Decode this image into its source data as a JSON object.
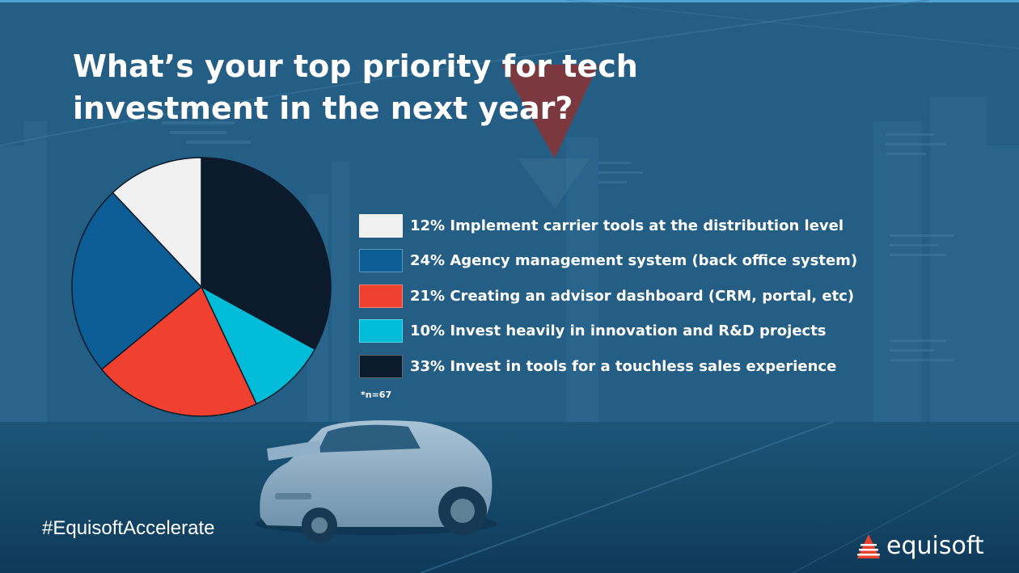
{
  "title_lines": [
    "What’s your top priority for tech",
    "investment in the next year?"
  ],
  "note": "*n=67",
  "hashtag": "#EquisoftAccelerate",
  "brand": {
    "name": "equisoft",
    "accent": "#e8432e"
  },
  "chart_data": {
    "type": "pie",
    "title": "What’s your top priority for tech investment in the next year?",
    "legend_position": "right",
    "slices": [
      {
        "label": "12% Implement carrier tools at the distribution level",
        "value": 12,
        "color": "#f1f1f1"
      },
      {
        "label": "24% Agency management system (back office system)",
        "value": 24,
        "color": "#0c5d96"
      },
      {
        "label": "21% Creating an advisor dashboard (CRM, portal, etc)",
        "value": 21,
        "color": "#f0402f"
      },
      {
        "label": "10% Invest heavily in innovation and R&D projects",
        "value": 10,
        "color": "#00bcd9"
      },
      {
        "label": "33% Invest in tools for a touchless sales experience",
        "value": 33,
        "color": "#0c1b2b"
      }
    ]
  }
}
